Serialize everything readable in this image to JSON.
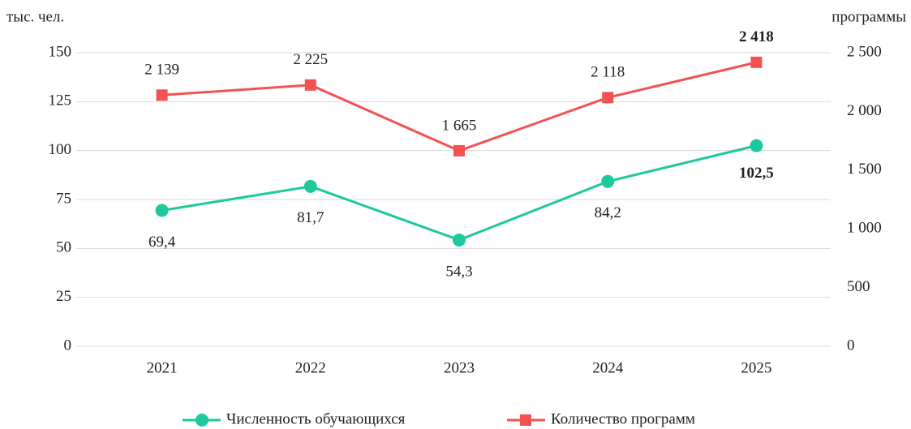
{
  "chart_data": {
    "type": "line",
    "y_label": "тыс. чел.",
    "y2_label": "программы",
    "categories": [
      "2021",
      "2022",
      "2023",
      "2024",
      "2025"
    ],
    "series": [
      {
        "name": "Численность обучающихся",
        "color": "#1dc99c",
        "marker": "circle",
        "values": [
          69.4,
          81.7,
          54.3,
          84.2,
          102.5
        ],
        "value_labels": [
          "69,4",
          "81,7",
          "54,3",
          "84,2",
          "102,5"
        ]
      },
      {
        "name": "Количество программ",
        "color": "#f45252",
        "marker": "square",
        "axis": "y2",
        "values": [
          2139,
          2225,
          1665,
          2118,
          2418
        ],
        "value_labels": [
          "2 139",
          "2 225",
          "1 665",
          "2 118",
          "2 418"
        ]
      }
    ],
    "ylim": [
      0,
      150
    ],
    "yticks": [
      0,
      25,
      50,
      75,
      100,
      125,
      150
    ],
    "y2lim": [
      0,
      2500
    ],
    "y2ticks": [
      0,
      500,
      {
        "value": 1000,
        "label": "1 000"
      },
      {
        "value": 1500,
        "label": "1 500"
      },
      {
        "value": 2000,
        "label": "2 000"
      },
      {
        "value": 2500,
        "label": "2 500"
      }
    ],
    "grid": true,
    "legend": "bottom"
  }
}
